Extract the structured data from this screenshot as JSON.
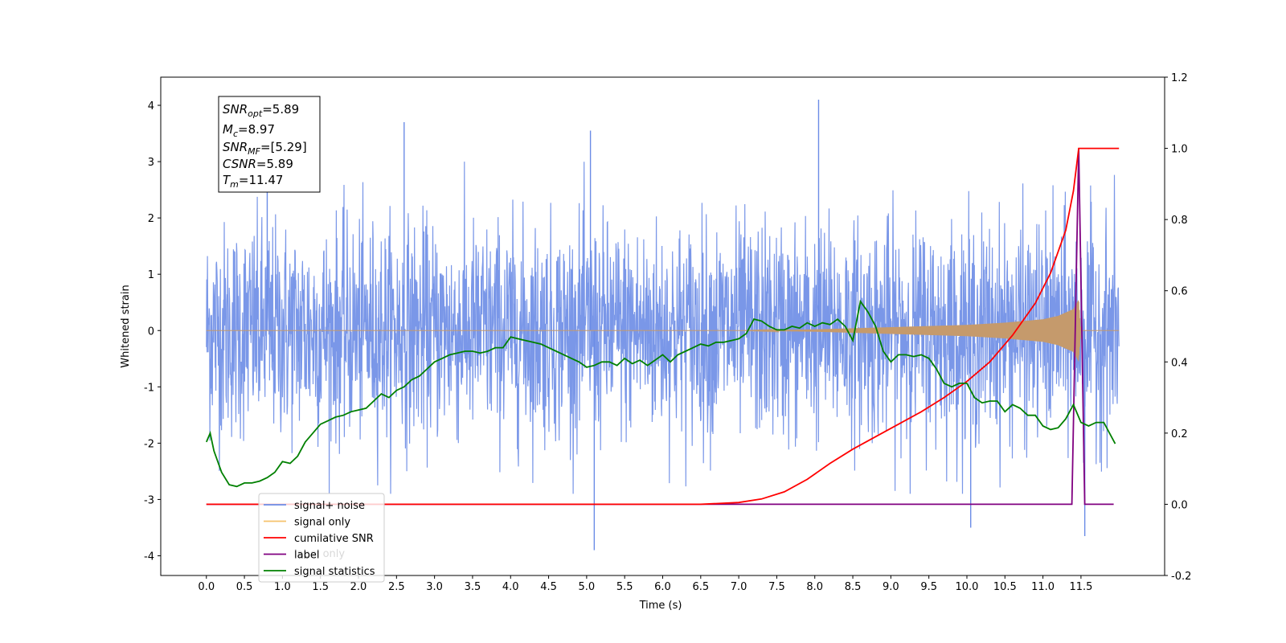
{
  "chart_data": {
    "type": "line",
    "xlabel": "Time (s)",
    "ylabel": "Whitened strain",
    "xlim": [
      -0.6,
      12.6
    ],
    "ylim_left": [
      -4.35,
      4.5
    ],
    "ylim_right": [
      -0.2,
      1.2
    ],
    "x_ticks": [
      "0.0",
      "0.5",
      "1.0",
      "1.5",
      "2.0",
      "2.5",
      "3.0",
      "3.5",
      "4.0",
      "4.5",
      "5.0",
      "5.5",
      "6.0",
      "6.5",
      "7.0",
      "7.5",
      "8.0",
      "8.5",
      "9.0",
      "9.5",
      "10.0",
      "10.5",
      "11.0",
      "11.5"
    ],
    "y_ticks_left": [
      "-4",
      "-3",
      "-2",
      "-1",
      "0",
      "1",
      "2",
      "3",
      "4"
    ],
    "y_ticks_right": [
      "-0.2",
      "0.0",
      "0.2",
      "0.4",
      "0.6",
      "0.8",
      "1.0",
      "1.2"
    ],
    "grid": false,
    "annotations": {
      "snr_opt": "=5.89",
      "mc": "=8.97",
      "snr_mf": "=[5.29]",
      "csnr": "=5.89",
      "tm": "=11.47"
    },
    "legend": {
      "placement": "lower-left",
      "entries": [
        {
          "label": "signal+ noise",
          "color": "#6b8ce6"
        },
        {
          "label": "signal only",
          "color": "#f5c26b"
        },
        {
          "label": "cumilative SNR",
          "color": "#ff0000"
        },
        {
          "label": "label",
          "color": "#800080"
        },
        {
          "label": "signal statistics",
          "color": "#008000"
        }
      ],
      "hidden_overlapped_text": "label only"
    },
    "series": [
      {
        "name": "signal+ noise",
        "axis": "left",
        "color": "#6b8ce6",
        "description_values": {
          "t_start": 0.0,
          "t_end": 12.0,
          "envelope_typical": [
            -1.8,
            2.4
          ],
          "spikes": [
            [
              0.8,
              3.3
            ],
            [
              2.6,
              3.7
            ],
            [
              5.05,
              3.55
            ],
            [
              8.05,
              4.1
            ],
            [
              5.1,
              -3.9
            ],
            [
              10.05,
              -3.5
            ],
            [
              11.55,
              -3.65
            ]
          ]
        }
      },
      {
        "name": "signal only",
        "axis": "left",
        "color": "#f5c26b",
        "x": [
          0.0,
          7.0,
          8.0,
          8.5,
          9.0,
          9.5,
          10.0,
          10.5,
          11.0,
          11.2,
          11.4,
          11.47,
          11.5,
          12.0
        ],
        "amplitude": [
          0.0,
          0.0,
          0.02,
          0.04,
          0.06,
          0.08,
          0.1,
          0.14,
          0.2,
          0.26,
          0.38,
          0.55,
          0.0,
          0.0
        ]
      },
      {
        "name": "cumilative SNR",
        "axis": "right",
        "color": "#ff0000",
        "x": [
          0.0,
          6.5,
          7.0,
          7.3,
          7.6,
          7.9,
          8.2,
          8.5,
          8.8,
          9.1,
          9.4,
          9.7,
          10.0,
          10.3,
          10.6,
          10.9,
          11.1,
          11.3,
          11.4,
          11.47,
          11.5,
          12.0
        ],
        "values": [
          0.0,
          0.0,
          0.005,
          0.015,
          0.035,
          0.07,
          0.115,
          0.155,
          0.19,
          0.225,
          0.26,
          0.3,
          0.345,
          0.4,
          0.475,
          0.565,
          0.65,
          0.77,
          0.88,
          1.0,
          1.0,
          1.0
        ]
      },
      {
        "name": "label",
        "axis": "right",
        "color": "#800080",
        "x": [
          0.0,
          11.38,
          11.47,
          11.55,
          11.93
        ],
        "values": [
          0.0,
          0.0,
          1.0,
          0.0,
          0.0
        ]
      },
      {
        "name": "signal statistics",
        "axis": "right",
        "color": "#008000",
        "x": [
          0.0,
          0.05,
          0.1,
          0.2,
          0.3,
          0.4,
          0.5,
          0.6,
          0.7,
          0.8,
          0.9,
          1.0,
          1.1,
          1.2,
          1.3,
          1.4,
          1.5,
          1.6,
          1.7,
          1.8,
          1.9,
          2.0,
          2.1,
          2.2,
          2.3,
          2.4,
          2.5,
          2.6,
          2.7,
          2.8,
          2.9,
          3.0,
          3.1,
          3.2,
          3.3,
          3.4,
          3.5,
          3.6,
          3.7,
          3.8,
          3.9,
          4.0,
          4.1,
          4.2,
          4.3,
          4.4,
          4.5,
          4.6,
          4.7,
          4.8,
          4.9,
          5.0,
          5.1,
          5.2,
          5.3,
          5.4,
          5.5,
          5.6,
          5.7,
          5.8,
          5.9,
          6.0,
          6.1,
          6.2,
          6.3,
          6.4,
          6.5,
          6.6,
          6.7,
          6.8,
          6.9,
          7.0,
          7.1,
          7.2,
          7.3,
          7.4,
          7.5,
          7.6,
          7.7,
          7.8,
          7.9,
          8.0,
          8.1,
          8.2,
          8.3,
          8.4,
          8.5,
          8.6,
          8.7,
          8.8,
          8.9,
          9.0,
          9.1,
          9.2,
          9.3,
          9.4,
          9.5,
          9.6,
          9.7,
          9.8,
          9.9,
          10.0,
          10.1,
          10.2,
          10.3,
          10.4,
          10.5,
          10.6,
          10.7,
          10.8,
          10.9,
          11.0,
          11.1,
          11.2,
          11.3,
          11.4,
          11.5,
          11.6,
          11.7,
          11.8,
          11.9,
          11.95
        ],
        "values": [
          0.175,
          0.2,
          0.15,
          0.09,
          0.055,
          0.05,
          0.06,
          0.06,
          0.065,
          0.075,
          0.09,
          0.12,
          0.115,
          0.135,
          0.175,
          0.2,
          0.225,
          0.235,
          0.245,
          0.25,
          0.26,
          0.265,
          0.27,
          0.29,
          0.31,
          0.3,
          0.32,
          0.33,
          0.35,
          0.36,
          0.38,
          0.4,
          0.41,
          0.42,
          0.425,
          0.43,
          0.43,
          0.425,
          0.43,
          0.44,
          0.44,
          0.47,
          0.465,
          0.46,
          0.455,
          0.45,
          0.44,
          0.43,
          0.42,
          0.41,
          0.4,
          0.385,
          0.39,
          0.4,
          0.4,
          0.39,
          0.41,
          0.395,
          0.405,
          0.39,
          0.405,
          0.42,
          0.4,
          0.42,
          0.43,
          0.44,
          0.45,
          0.445,
          0.455,
          0.455,
          0.46,
          0.465,
          0.48,
          0.52,
          0.515,
          0.5,
          0.49,
          0.49,
          0.5,
          0.495,
          0.51,
          0.5,
          0.51,
          0.505,
          0.52,
          0.5,
          0.46,
          0.57,
          0.54,
          0.5,
          0.43,
          0.4,
          0.42,
          0.42,
          0.415,
          0.42,
          0.41,
          0.38,
          0.34,
          0.33,
          0.34,
          0.34,
          0.3,
          0.285,
          0.29,
          0.29,
          0.26,
          0.28,
          0.27,
          0.25,
          0.25,
          0.22,
          0.21,
          0.215,
          0.24,
          0.28,
          0.23,
          0.22,
          0.23,
          0.23,
          0.19,
          0.17
        ]
      }
    ]
  }
}
